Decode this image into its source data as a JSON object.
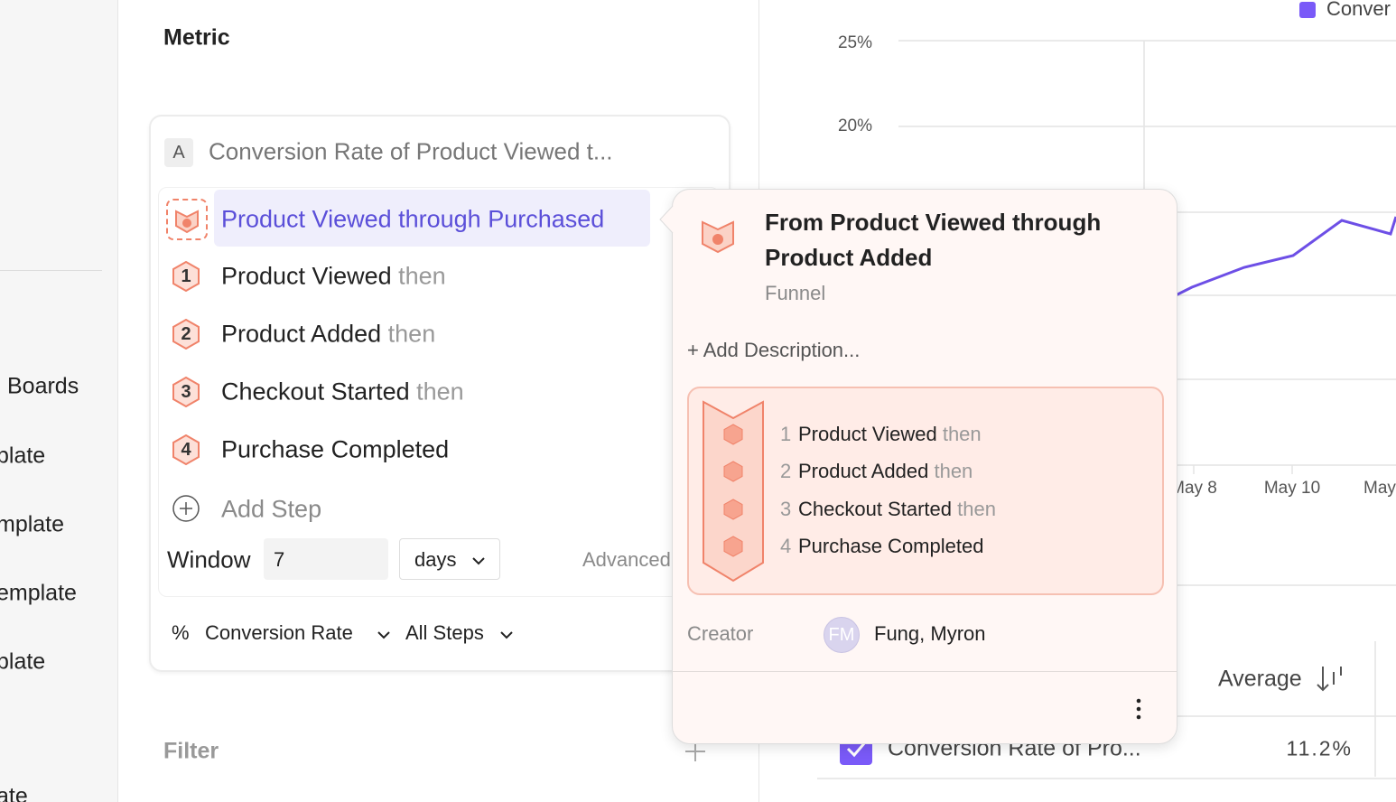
{
  "sidebar": {
    "items": [
      "Boards",
      "plate",
      "mplate",
      "emplate",
      "plate",
      "ate"
    ]
  },
  "metric_panel": {
    "title": "Metric",
    "metric": {
      "letter": "A",
      "name": "Conversion Rate of Product Viewed t..."
    },
    "selected": "Product Viewed through Purchased",
    "steps": [
      {
        "number": "1",
        "event": "Product Viewed",
        "connector": "then"
      },
      {
        "number": "2",
        "event": "Product Added",
        "connector": "then"
      },
      {
        "number": "3",
        "event": "Checkout Started",
        "connector": "then"
      },
      {
        "number": "4",
        "event": "Purchase Completed"
      }
    ],
    "add_step": "Add Step",
    "window": {
      "label": "Window",
      "value": "7",
      "unit": "days"
    },
    "advanced": "Advanced",
    "measure": {
      "symbol": "%",
      "type": "Conversion Rate",
      "scope": "All Steps"
    },
    "filter": "Filter"
  },
  "chart": {
    "legend": "Conver",
    "y_labels": [
      "25%",
      "20%"
    ],
    "x_labels": [
      "May 8",
      "May 10",
      "May"
    ]
  },
  "table": {
    "column": "Average",
    "rows": [
      {
        "name": "Conversion Rate of Pro...",
        "average": "11.2%"
      }
    ]
  },
  "popup": {
    "title": "From Product Viewed through Product Added",
    "kind": "Funnel",
    "add_description": "+ Add Description...",
    "steps": [
      {
        "number": "1",
        "event": "Product Viewed",
        "connector": "then"
      },
      {
        "number": "2",
        "event": "Product Added",
        "connector": "then"
      },
      {
        "number": "3",
        "event": "Checkout Started",
        "connector": "then"
      },
      {
        "number": "4",
        "event": "Purchase Completed"
      }
    ],
    "creator_label": "Creator",
    "creator_initials": "FM",
    "creator": "Fung, Myron"
  }
}
